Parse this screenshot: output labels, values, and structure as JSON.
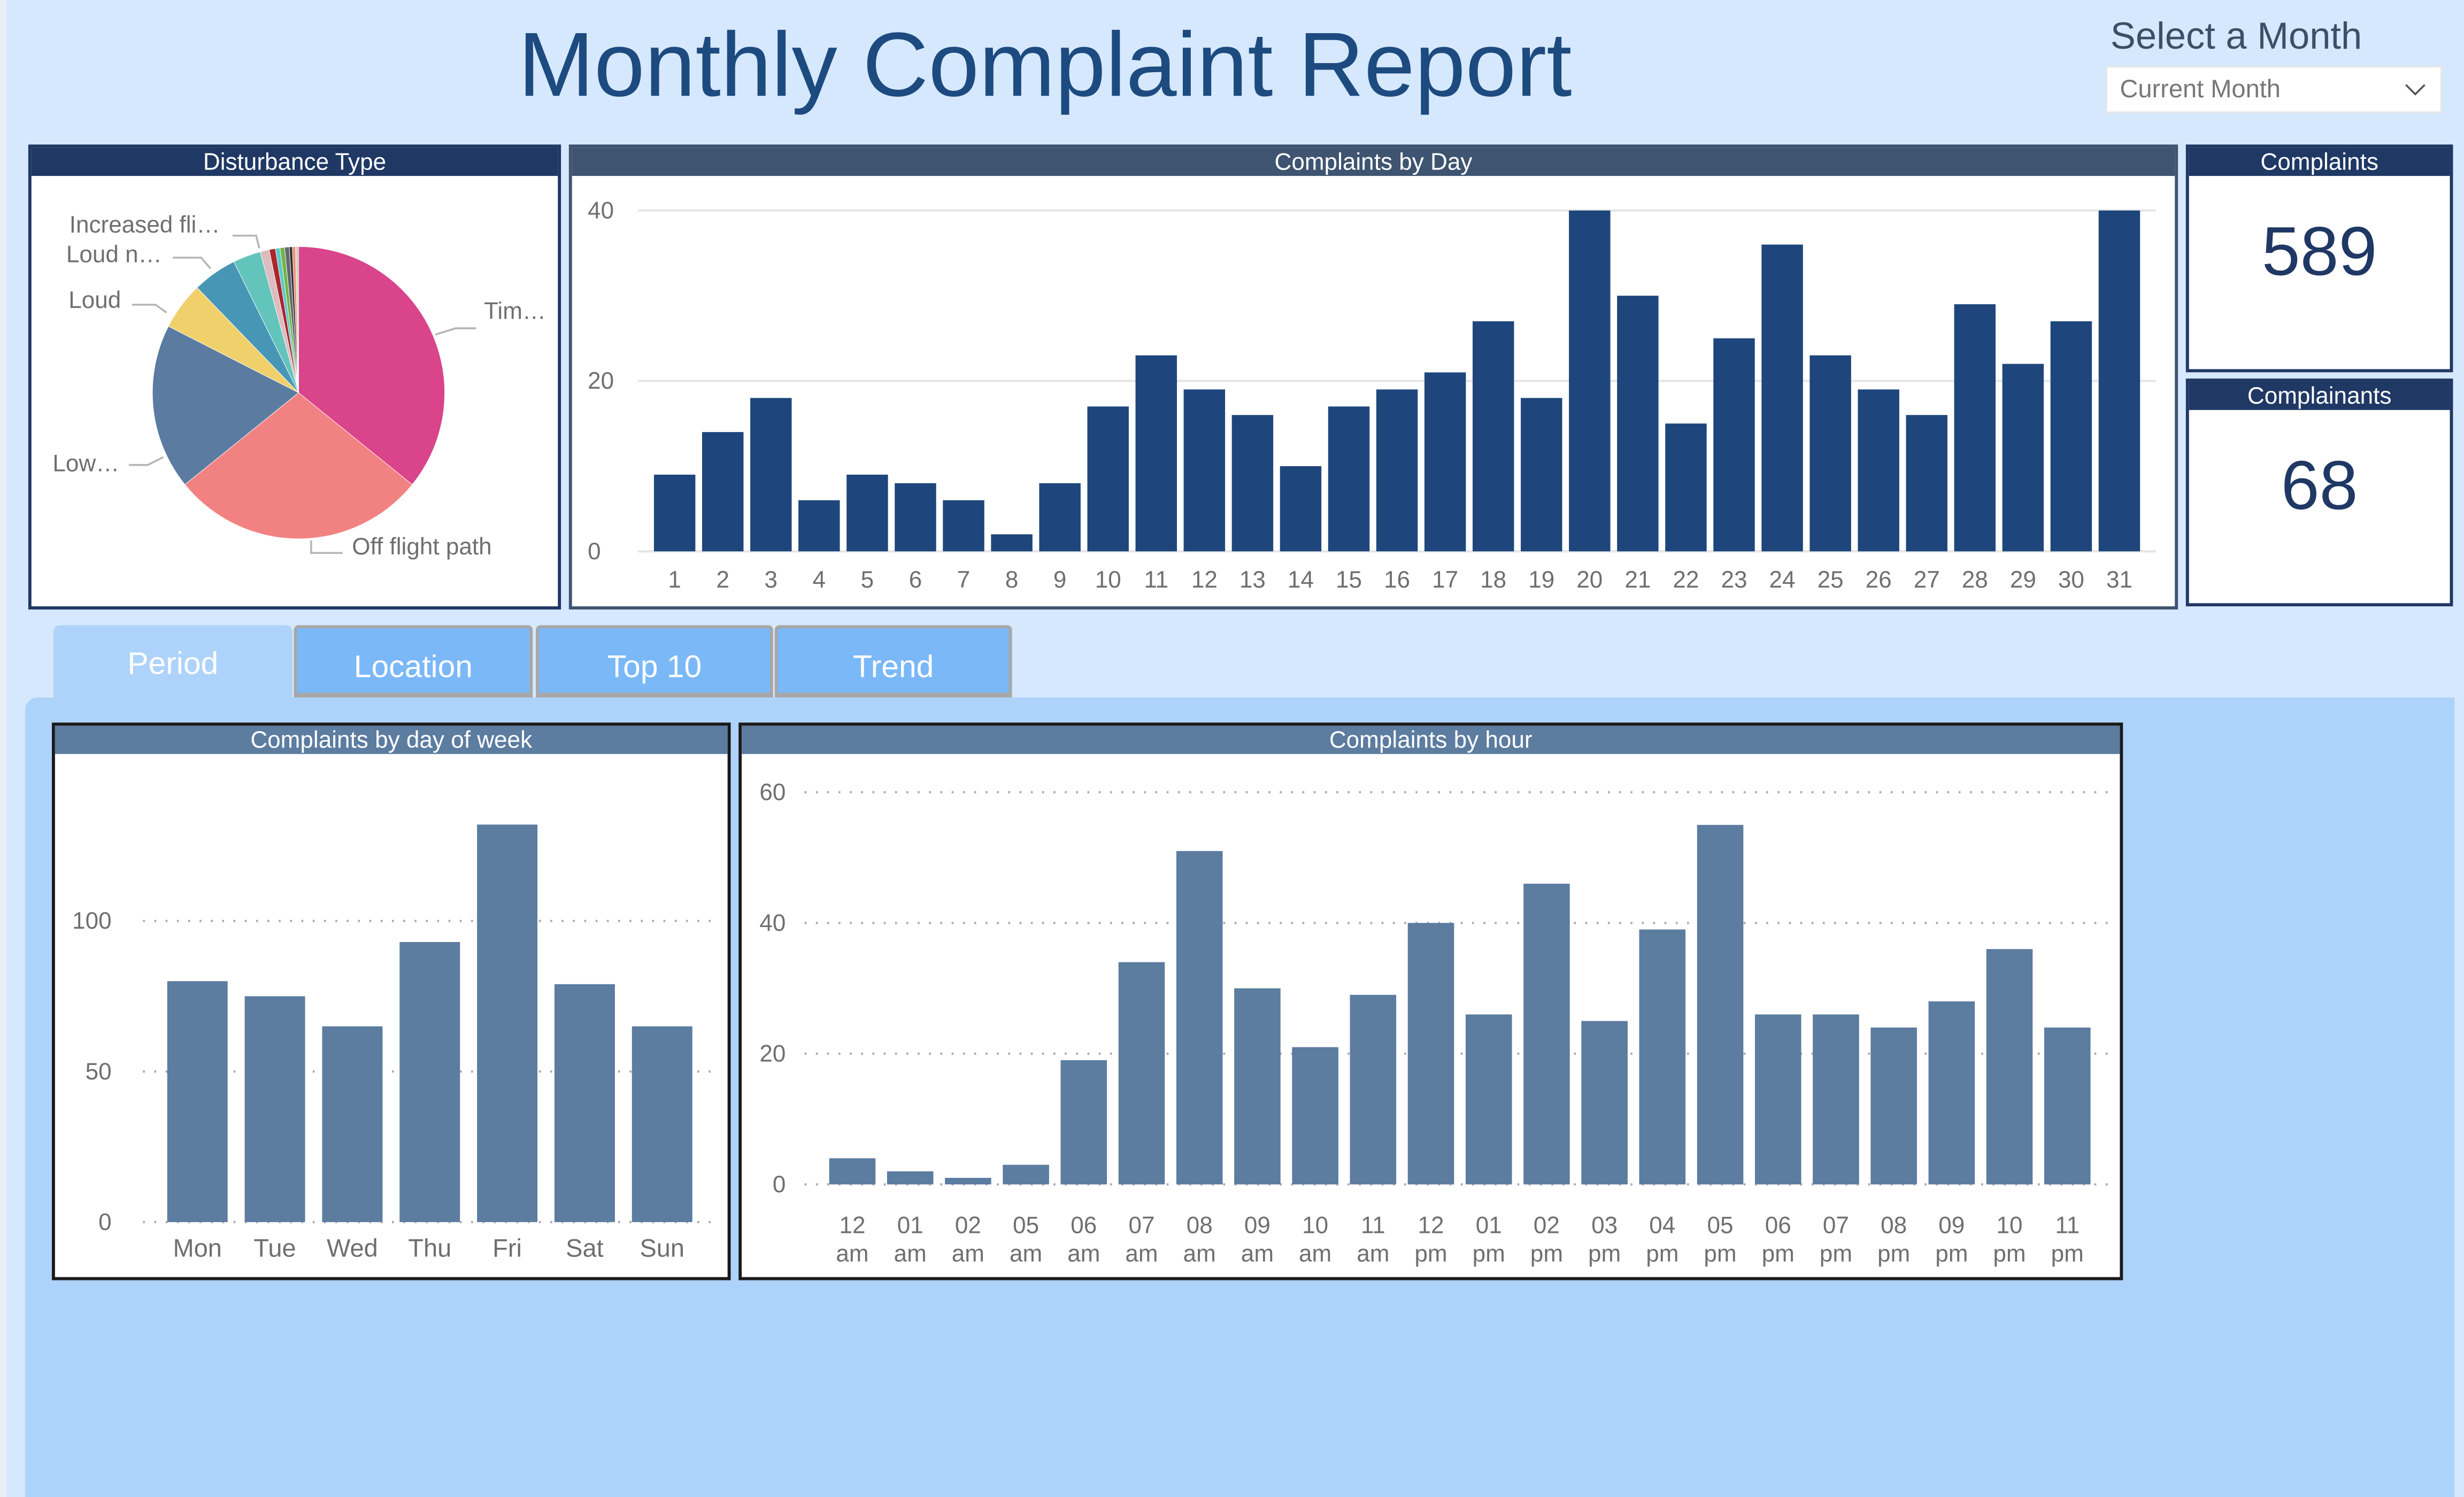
{
  "header": {
    "title": "Monthly Complaint Report",
    "month_selector_label": "Select a Month",
    "month_selector_value": "Current Month"
  },
  "kpis": {
    "complaints": {
      "label": "Complaints",
      "value": "589"
    },
    "complainants": {
      "label": "Complainants",
      "value": "68"
    }
  },
  "tabs": [
    {
      "label": "Period",
      "active": true
    },
    {
      "label": "Location",
      "active": false
    },
    {
      "label": "Top 10",
      "active": false
    },
    {
      "label": "Trend",
      "active": false
    }
  ],
  "colors": {
    "title": "#1d4b80",
    "day_bar": "#1e467c",
    "period_bar": "#5c7ca0",
    "navy_header": "#1f3864",
    "tab_inactive": "#7ab8f8",
    "tab_active": "#aed3fa"
  },
  "chart_data": [
    {
      "id": "disturbance",
      "type": "pie",
      "title": "Disturbance Type",
      "start_angle_deg": 0,
      "direction": "clockwise",
      "slices": [
        {
          "label": "Tim…",
          "value": 211,
          "color": "#d9448a",
          "shown_label": true
        },
        {
          "label": "Off flight path",
          "value": 167,
          "color": "#f28282",
          "shown_label": true
        },
        {
          "label": "Low…",
          "value": 108,
          "color": "#5b7ca0",
          "shown_label": true
        },
        {
          "label": "Loud",
          "value": 31,
          "color": "#f0d06b",
          "shown_label": true
        },
        {
          "label": "Loud n…",
          "value": 29,
          "color": "#4896b6",
          "shown_label": true
        },
        {
          "label": "Increased fli…",
          "value": 18,
          "color": "#63c4bb",
          "shown_label": true
        },
        {
          "label": "",
          "value": 6,
          "color": "#dcbcbf",
          "shown_label": false
        },
        {
          "label": "",
          "value": 4,
          "color": "#a9262f",
          "shown_label": false
        },
        {
          "label": "",
          "value": 3,
          "color": "#5ec8c8",
          "shown_label": false
        },
        {
          "label": "",
          "value": 3,
          "color": "#73b34a",
          "shown_label": false
        },
        {
          "label": "",
          "value": 3,
          "color": "#63696f",
          "shown_label": false
        },
        {
          "label": "",
          "value": 2,
          "color": "#333333",
          "shown_label": false
        },
        {
          "label": "",
          "value": 2,
          "color": "#f28a80",
          "shown_label": false
        },
        {
          "label": "",
          "value": 1,
          "color": "#f2c45c",
          "shown_label": false
        },
        {
          "label": "",
          "value": 1,
          "color": "#8fb8da",
          "shown_label": false
        }
      ]
    },
    {
      "id": "by_day",
      "type": "bar",
      "title": "Complaints by Day",
      "categories": [
        "1",
        "2",
        "3",
        "4",
        "5",
        "6",
        "7",
        "8",
        "9",
        "10",
        "11",
        "12",
        "13",
        "14",
        "15",
        "16",
        "17",
        "18",
        "19",
        "20",
        "21",
        "22",
        "23",
        "24",
        "25",
        "26",
        "27",
        "28",
        "29",
        "30",
        "31"
      ],
      "values": [
        9,
        14,
        18,
        6,
        9,
        8,
        6,
        2,
        8,
        17,
        23,
        19,
        16,
        10,
        17,
        19,
        21,
        27,
        18,
        40,
        30,
        15,
        25,
        36,
        23,
        19,
        16,
        29,
        22,
        27,
        40
      ],
      "ylim": [
        0,
        40
      ],
      "yticks": [
        "0",
        "20",
        "40"
      ],
      "grid": "solid",
      "xlabel": "",
      "ylabel": ""
    },
    {
      "id": "by_weekday",
      "type": "bar",
      "title": "Complaints by day of week",
      "categories": [
        "Mon",
        "Tue",
        "Wed",
        "Thu",
        "Fri",
        "Sat",
        "Sun"
      ],
      "values": [
        80,
        75,
        65,
        93,
        132,
        79,
        65
      ],
      "ylim": [
        0,
        145
      ],
      "yticks": [
        "0",
        "50",
        "100"
      ],
      "grid": "dotted",
      "xlabel": "",
      "ylabel": ""
    },
    {
      "id": "by_hour",
      "type": "bar",
      "title": "Complaints by hour",
      "categories": [
        [
          "12",
          "am"
        ],
        [
          "01",
          "am"
        ],
        [
          "02",
          "am"
        ],
        [
          "05",
          "am"
        ],
        [
          "06",
          "am"
        ],
        [
          "07",
          "am"
        ],
        [
          "08",
          "am"
        ],
        [
          "09",
          "am"
        ],
        [
          "10",
          "am"
        ],
        [
          "11",
          "am"
        ],
        [
          "12",
          "pm"
        ],
        [
          "01",
          "pm"
        ],
        [
          "02",
          "pm"
        ],
        [
          "03",
          "pm"
        ],
        [
          "04",
          "pm"
        ],
        [
          "05",
          "pm"
        ],
        [
          "06",
          "pm"
        ],
        [
          "07",
          "pm"
        ],
        [
          "08",
          "pm"
        ],
        [
          "09",
          "pm"
        ],
        [
          "10",
          "pm"
        ],
        [
          "11",
          "pm"
        ]
      ],
      "values": [
        4,
        2,
        1,
        3,
        19,
        34,
        51,
        30,
        21,
        29,
        40,
        26,
        46,
        25,
        39,
        55,
        26,
        26,
        24,
        28,
        36,
        24
      ],
      "ylim": [
        0,
        62
      ],
      "yticks": [
        "0",
        "20",
        "40",
        "60"
      ],
      "grid": "dotted",
      "xlabel": "",
      "ylabel": ""
    }
  ]
}
